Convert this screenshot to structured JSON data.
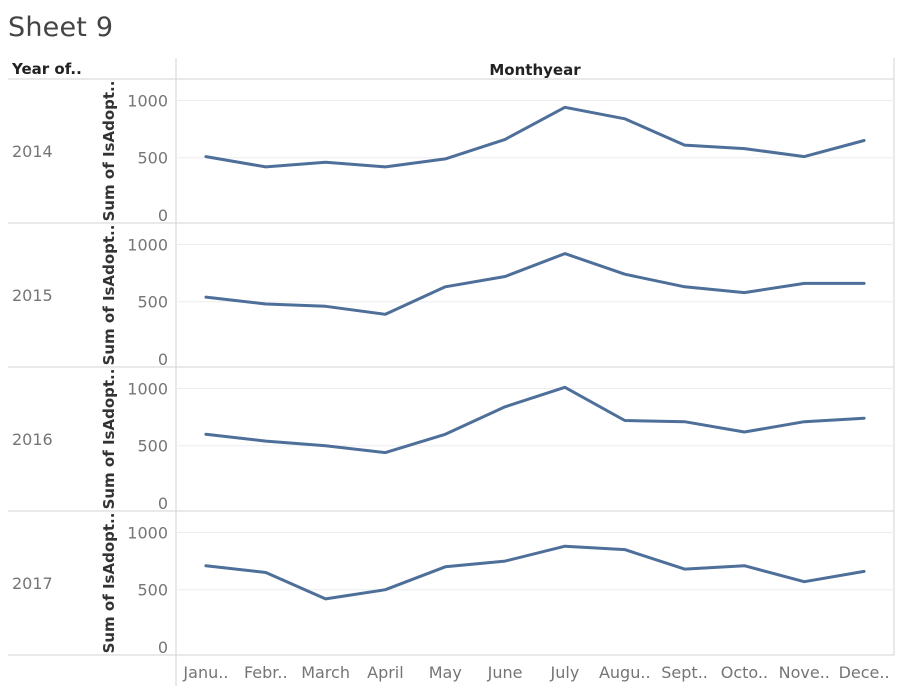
{
  "sheet": {
    "title": "Sheet 9"
  },
  "headers": {
    "row_header": "Year of..",
    "column_header": "Monthyear"
  },
  "colors": {
    "line": "#4E6F99",
    "grid": "#EEEEEE",
    "border": "#D3D3D3",
    "text": "#757575"
  },
  "chart_data": {
    "type": "line",
    "title": "Sheet 9",
    "xlabel": "Monthyear",
    "ylabel": "Sum of IsAdopt..",
    "ylim": [
      0,
      1100
    ],
    "yticks": [
      0,
      500,
      1000
    ],
    "categories": [
      "Janu..",
      "Febr..",
      "March",
      "April",
      "May",
      "June",
      "July",
      "Augu..",
      "Sept..",
      "Octo..",
      "Nove..",
      "Dece.."
    ],
    "grid": true,
    "series": [
      {
        "name": "2014",
        "values": [
          510,
          420,
          460,
          420,
          490,
          660,
          940,
          840,
          610,
          580,
          510,
          650
        ]
      },
      {
        "name": "2015",
        "values": [
          540,
          480,
          460,
          390,
          630,
          720,
          920,
          740,
          630,
          580,
          660,
          660
        ]
      },
      {
        "name": "2016",
        "values": [
          600,
          540,
          500,
          440,
          600,
          840,
          1010,
          720,
          710,
          620,
          710,
          740
        ]
      },
      {
        "name": "2017",
        "values": [
          710,
          650,
          420,
          500,
          700,
          750,
          880,
          850,
          680,
          710,
          570,
          660
        ]
      }
    ]
  }
}
